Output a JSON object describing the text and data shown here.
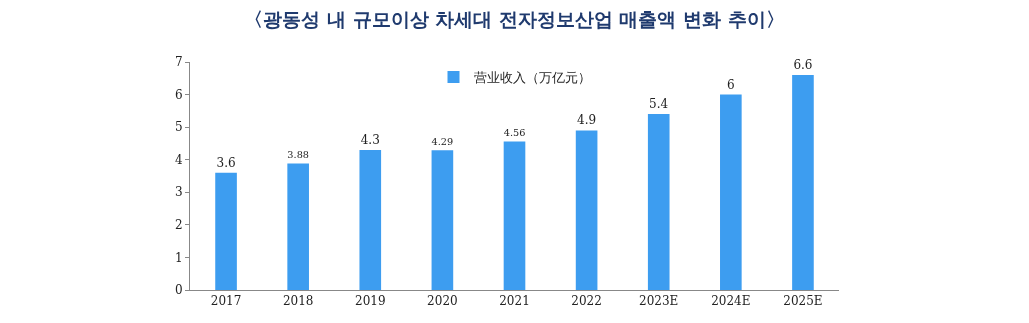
{
  "chart_data": {
    "type": "bar",
    "title": "〈광동성 내 규모이상 차세대 전자정보산업 매출액 변화 추이〉",
    "categories": [
      "2017",
      "2018",
      "2019",
      "2020",
      "2021",
      "2022",
      "2023E",
      "2024E",
      "2025E"
    ],
    "series": [
      {
        "name": "营业收入（万亿元）",
        "color": "#3d9df0",
        "values": [
          3.6,
          3.88,
          4.3,
          4.29,
          4.56,
          4.9,
          5.4,
          6,
          6.6
        ]
      }
    ],
    "ylim": [
      0,
      7
    ],
    "yticks": [
      0,
      1,
      2,
      3,
      4,
      5,
      6,
      7
    ],
    "grid": false,
    "legend": "top",
    "data_labels": true
  }
}
